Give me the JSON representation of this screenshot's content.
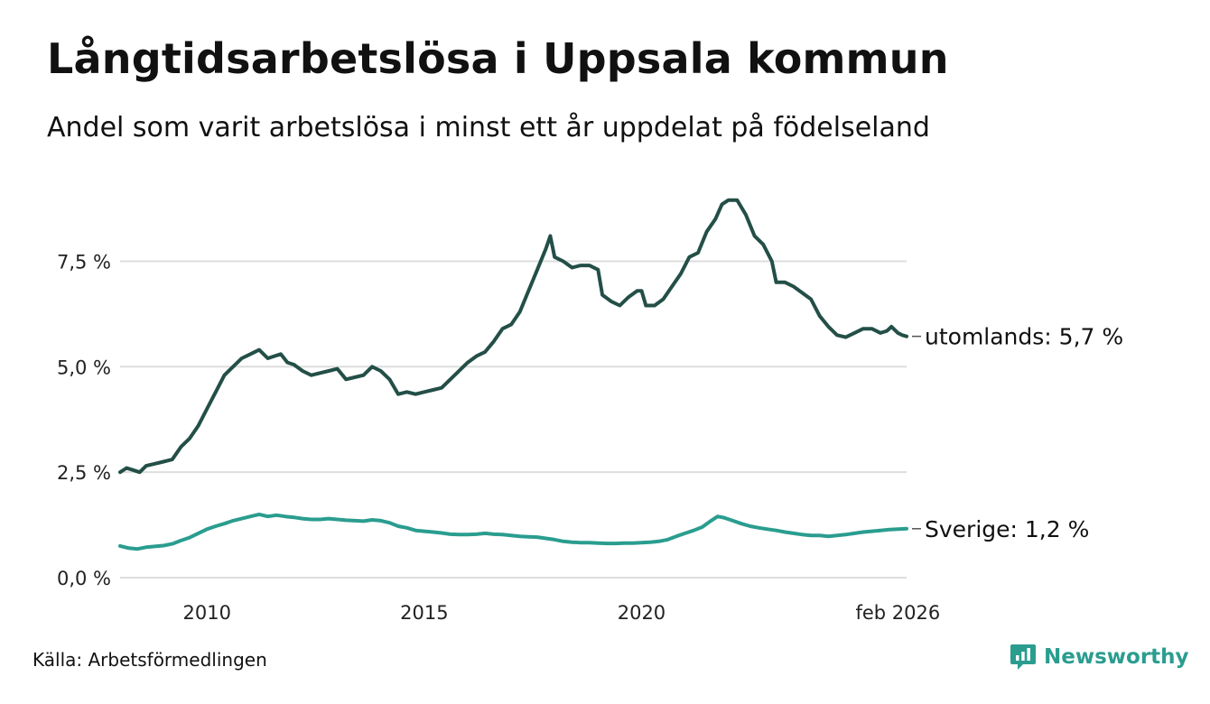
{
  "title": "Långtidsarbetslösa i Uppsala kommun",
  "subtitle": "Andel som varit arbetslösa i minst ett år uppdelat på födelseland",
  "source": "Källa: Arbetsförmedlingen",
  "brand": "Newsworthy",
  "colors": {
    "utomlands": "#234f47",
    "sverige": "#2a9d8f",
    "grid": "#dddddd",
    "brand": "#2a9d8f"
  },
  "chart_data": {
    "type": "line",
    "title": "Långtidsarbetslösa i Uppsala kommun",
    "xlabel": "",
    "ylabel": "",
    "xlim": [
      2008.0,
      2026.1
    ],
    "ylim": [
      0,
      9.2
    ],
    "y_ticks": [
      {
        "value": 0,
        "label": "0,0 %"
      },
      {
        "value": 2.5,
        "label": "2,5 %"
      },
      {
        "value": 5,
        "label": "5,0 %"
      },
      {
        "value": 7.5,
        "label": "7,5 %"
      }
    ],
    "x_ticks": [
      {
        "value": 2010,
        "label": "2010"
      },
      {
        "value": 2015,
        "label": "2015"
      },
      {
        "value": 2020,
        "label": "2020"
      },
      {
        "value": 2025.9,
        "label": "feb 2026"
      }
    ],
    "grid": true,
    "series": [
      {
        "name": "utomlands",
        "end_label": "utomlands: 5,7 %",
        "color": "#234f47",
        "points": [
          [
            2008.0,
            2.5
          ],
          [
            2008.15,
            2.6
          ],
          [
            2008.3,
            2.55
          ],
          [
            2008.45,
            2.5
          ],
          [
            2008.6,
            2.65
          ],
          [
            2008.8,
            2.7
          ],
          [
            2009.0,
            2.75
          ],
          [
            2009.2,
            2.8
          ],
          [
            2009.4,
            3.1
          ],
          [
            2009.6,
            3.3
          ],
          [
            2009.8,
            3.6
          ],
          [
            2010.0,
            4.0
          ],
          [
            2010.2,
            4.4
          ],
          [
            2010.4,
            4.8
          ],
          [
            2010.6,
            5.0
          ],
          [
            2010.8,
            5.2
          ],
          [
            2011.0,
            5.3
          ],
          [
            2011.2,
            5.4
          ],
          [
            2011.4,
            5.2
          ],
          [
            2011.55,
            5.25
          ],
          [
            2011.7,
            5.3
          ],
          [
            2011.85,
            5.1
          ],
          [
            2012.0,
            5.05
          ],
          [
            2012.2,
            4.9
          ],
          [
            2012.4,
            4.8
          ],
          [
            2012.6,
            4.85
          ],
          [
            2012.8,
            4.9
          ],
          [
            2013.0,
            4.95
          ],
          [
            2013.2,
            4.7
          ],
          [
            2013.4,
            4.75
          ],
          [
            2013.6,
            4.8
          ],
          [
            2013.8,
            5.0
          ],
          [
            2014.0,
            4.9
          ],
          [
            2014.2,
            4.7
          ],
          [
            2014.4,
            4.35
          ],
          [
            2014.6,
            4.4
          ],
          [
            2014.8,
            4.35
          ],
          [
            2015.0,
            4.4
          ],
          [
            2015.2,
            4.45
          ],
          [
            2015.4,
            4.5
          ],
          [
            2015.6,
            4.7
          ],
          [
            2015.8,
            4.9
          ],
          [
            2016.0,
            5.1
          ],
          [
            2016.2,
            5.25
          ],
          [
            2016.4,
            5.35
          ],
          [
            2016.6,
            5.6
          ],
          [
            2016.8,
            5.9
          ],
          [
            2017.0,
            6.0
          ],
          [
            2017.2,
            6.3
          ],
          [
            2017.4,
            6.8
          ],
          [
            2017.6,
            7.3
          ],
          [
            2017.8,
            7.8
          ],
          [
            2017.9,
            8.1
          ],
          [
            2018.0,
            7.6
          ],
          [
            2018.2,
            7.5
          ],
          [
            2018.4,
            7.35
          ],
          [
            2018.6,
            7.4
          ],
          [
            2018.8,
            7.4
          ],
          [
            2019.0,
            7.3
          ],
          [
            2019.1,
            6.7
          ],
          [
            2019.3,
            6.55
          ],
          [
            2019.5,
            6.45
          ],
          [
            2019.7,
            6.65
          ],
          [
            2019.9,
            6.8
          ],
          [
            2020.0,
            6.8
          ],
          [
            2020.1,
            6.45
          ],
          [
            2020.3,
            6.45
          ],
          [
            2020.5,
            6.6
          ],
          [
            2020.7,
            6.9
          ],
          [
            2020.9,
            7.2
          ],
          [
            2021.1,
            7.6
          ],
          [
            2021.3,
            7.7
          ],
          [
            2021.5,
            8.2
          ],
          [
            2021.7,
            8.5
          ],
          [
            2021.85,
            8.85
          ],
          [
            2022.0,
            8.95
          ],
          [
            2022.2,
            8.95
          ],
          [
            2022.4,
            8.6
          ],
          [
            2022.6,
            8.1
          ],
          [
            2022.8,
            7.9
          ],
          [
            2023.0,
            7.5
          ],
          [
            2023.1,
            7.0
          ],
          [
            2023.3,
            7.0
          ],
          [
            2023.5,
            6.9
          ],
          [
            2023.7,
            6.75
          ],
          [
            2023.9,
            6.6
          ],
          [
            2024.1,
            6.2
          ],
          [
            2024.3,
            5.95
          ],
          [
            2024.5,
            5.75
          ],
          [
            2024.7,
            5.7
          ],
          [
            2024.9,
            5.8
          ],
          [
            2025.1,
            5.9
          ],
          [
            2025.3,
            5.9
          ],
          [
            2025.5,
            5.8
          ],
          [
            2025.65,
            5.85
          ],
          [
            2025.75,
            5.95
          ],
          [
            2025.9,
            5.8
          ],
          [
            2026.0,
            5.75
          ],
          [
            2026.1,
            5.72
          ]
        ]
      },
      {
        "name": "Sverige",
        "end_label": "Sverige: 1,2 %",
        "color": "#2a9d8f",
        "points": [
          [
            2008.0,
            0.75
          ],
          [
            2008.2,
            0.7
          ],
          [
            2008.4,
            0.68
          ],
          [
            2008.6,
            0.72
          ],
          [
            2008.8,
            0.74
          ],
          [
            2009.0,
            0.76
          ],
          [
            2009.2,
            0.8
          ],
          [
            2009.4,
            0.88
          ],
          [
            2009.6,
            0.95
          ],
          [
            2009.8,
            1.05
          ],
          [
            2010.0,
            1.15
          ],
          [
            2010.2,
            1.22
          ],
          [
            2010.4,
            1.28
          ],
          [
            2010.6,
            1.35
          ],
          [
            2010.8,
            1.4
          ],
          [
            2011.0,
            1.45
          ],
          [
            2011.2,
            1.5
          ],
          [
            2011.4,
            1.45
          ],
          [
            2011.6,
            1.48
          ],
          [
            2011.8,
            1.45
          ],
          [
            2012.0,
            1.43
          ],
          [
            2012.2,
            1.4
          ],
          [
            2012.4,
            1.38
          ],
          [
            2012.6,
            1.38
          ],
          [
            2012.8,
            1.4
          ],
          [
            2013.0,
            1.38
          ],
          [
            2013.2,
            1.36
          ],
          [
            2013.4,
            1.35
          ],
          [
            2013.6,
            1.34
          ],
          [
            2013.8,
            1.37
          ],
          [
            2014.0,
            1.35
          ],
          [
            2014.2,
            1.3
          ],
          [
            2014.4,
            1.22
          ],
          [
            2014.6,
            1.18
          ],
          [
            2014.8,
            1.12
          ],
          [
            2015.0,
            1.1
          ],
          [
            2015.2,
            1.08
          ],
          [
            2015.4,
            1.06
          ],
          [
            2015.6,
            1.03
          ],
          [
            2015.8,
            1.02
          ],
          [
            2016.0,
            1.02
          ],
          [
            2016.2,
            1.03
          ],
          [
            2016.4,
            1.05
          ],
          [
            2016.6,
            1.03
          ],
          [
            2016.8,
            1.02
          ],
          [
            2017.0,
            1.0
          ],
          [
            2017.2,
            0.98
          ],
          [
            2017.4,
            0.97
          ],
          [
            2017.6,
            0.96
          ],
          [
            2017.8,
            0.93
          ],
          [
            2018.0,
            0.9
          ],
          [
            2018.2,
            0.86
          ],
          [
            2018.4,
            0.84
          ],
          [
            2018.6,
            0.83
          ],
          [
            2018.8,
            0.83
          ],
          [
            2019.0,
            0.82
          ],
          [
            2019.2,
            0.81
          ],
          [
            2019.4,
            0.81
          ],
          [
            2019.6,
            0.82
          ],
          [
            2019.8,
            0.82
          ],
          [
            2020.0,
            0.83
          ],
          [
            2020.2,
            0.84
          ],
          [
            2020.4,
            0.86
          ],
          [
            2020.6,
            0.9
          ],
          [
            2020.8,
            0.98
          ],
          [
            2021.0,
            1.05
          ],
          [
            2021.2,
            1.12
          ],
          [
            2021.4,
            1.2
          ],
          [
            2021.6,
            1.35
          ],
          [
            2021.75,
            1.45
          ],
          [
            2021.9,
            1.42
          ],
          [
            2022.1,
            1.35
          ],
          [
            2022.3,
            1.28
          ],
          [
            2022.5,
            1.22
          ],
          [
            2022.7,
            1.18
          ],
          [
            2022.9,
            1.15
          ],
          [
            2023.1,
            1.12
          ],
          [
            2023.3,
            1.08
          ],
          [
            2023.5,
            1.05
          ],
          [
            2023.7,
            1.02
          ],
          [
            2023.9,
            1.0
          ],
          [
            2024.1,
            1.0
          ],
          [
            2024.3,
            0.98
          ],
          [
            2024.5,
            1.0
          ],
          [
            2024.7,
            1.02
          ],
          [
            2024.9,
            1.05
          ],
          [
            2025.1,
            1.08
          ],
          [
            2025.3,
            1.1
          ],
          [
            2025.5,
            1.12
          ],
          [
            2025.7,
            1.14
          ],
          [
            2025.9,
            1.15
          ],
          [
            2026.1,
            1.16
          ]
        ]
      }
    ]
  }
}
